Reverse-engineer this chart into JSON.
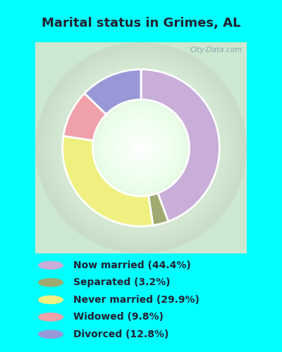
{
  "title": "Marital status in Grimes, AL",
  "bg_cyan": "#00ffff",
  "chart_bg_outer": "#c8e8cc",
  "chart_bg_inner": "#e8f5ea",
  "slices": [
    {
      "label": "Now married (44.4%)",
      "value": 44.4,
      "color": "#c8aed8"
    },
    {
      "label": "Separated (3.2%)",
      "value": 3.2,
      "color": "#a0aa70"
    },
    {
      "label": "Never married (29.9%)",
      "value": 29.9,
      "color": "#f0f080"
    },
    {
      "label": "Widowed (9.8%)",
      "value": 9.8,
      "color": "#f0a0a8"
    },
    {
      "label": "Divorced (12.8%)",
      "value": 12.8,
      "color": "#9898d8"
    }
  ],
  "watermark": "City-Data.com",
  "title_fontsize": 13,
  "title_color": "#222233",
  "legend_fontsize": 10
}
